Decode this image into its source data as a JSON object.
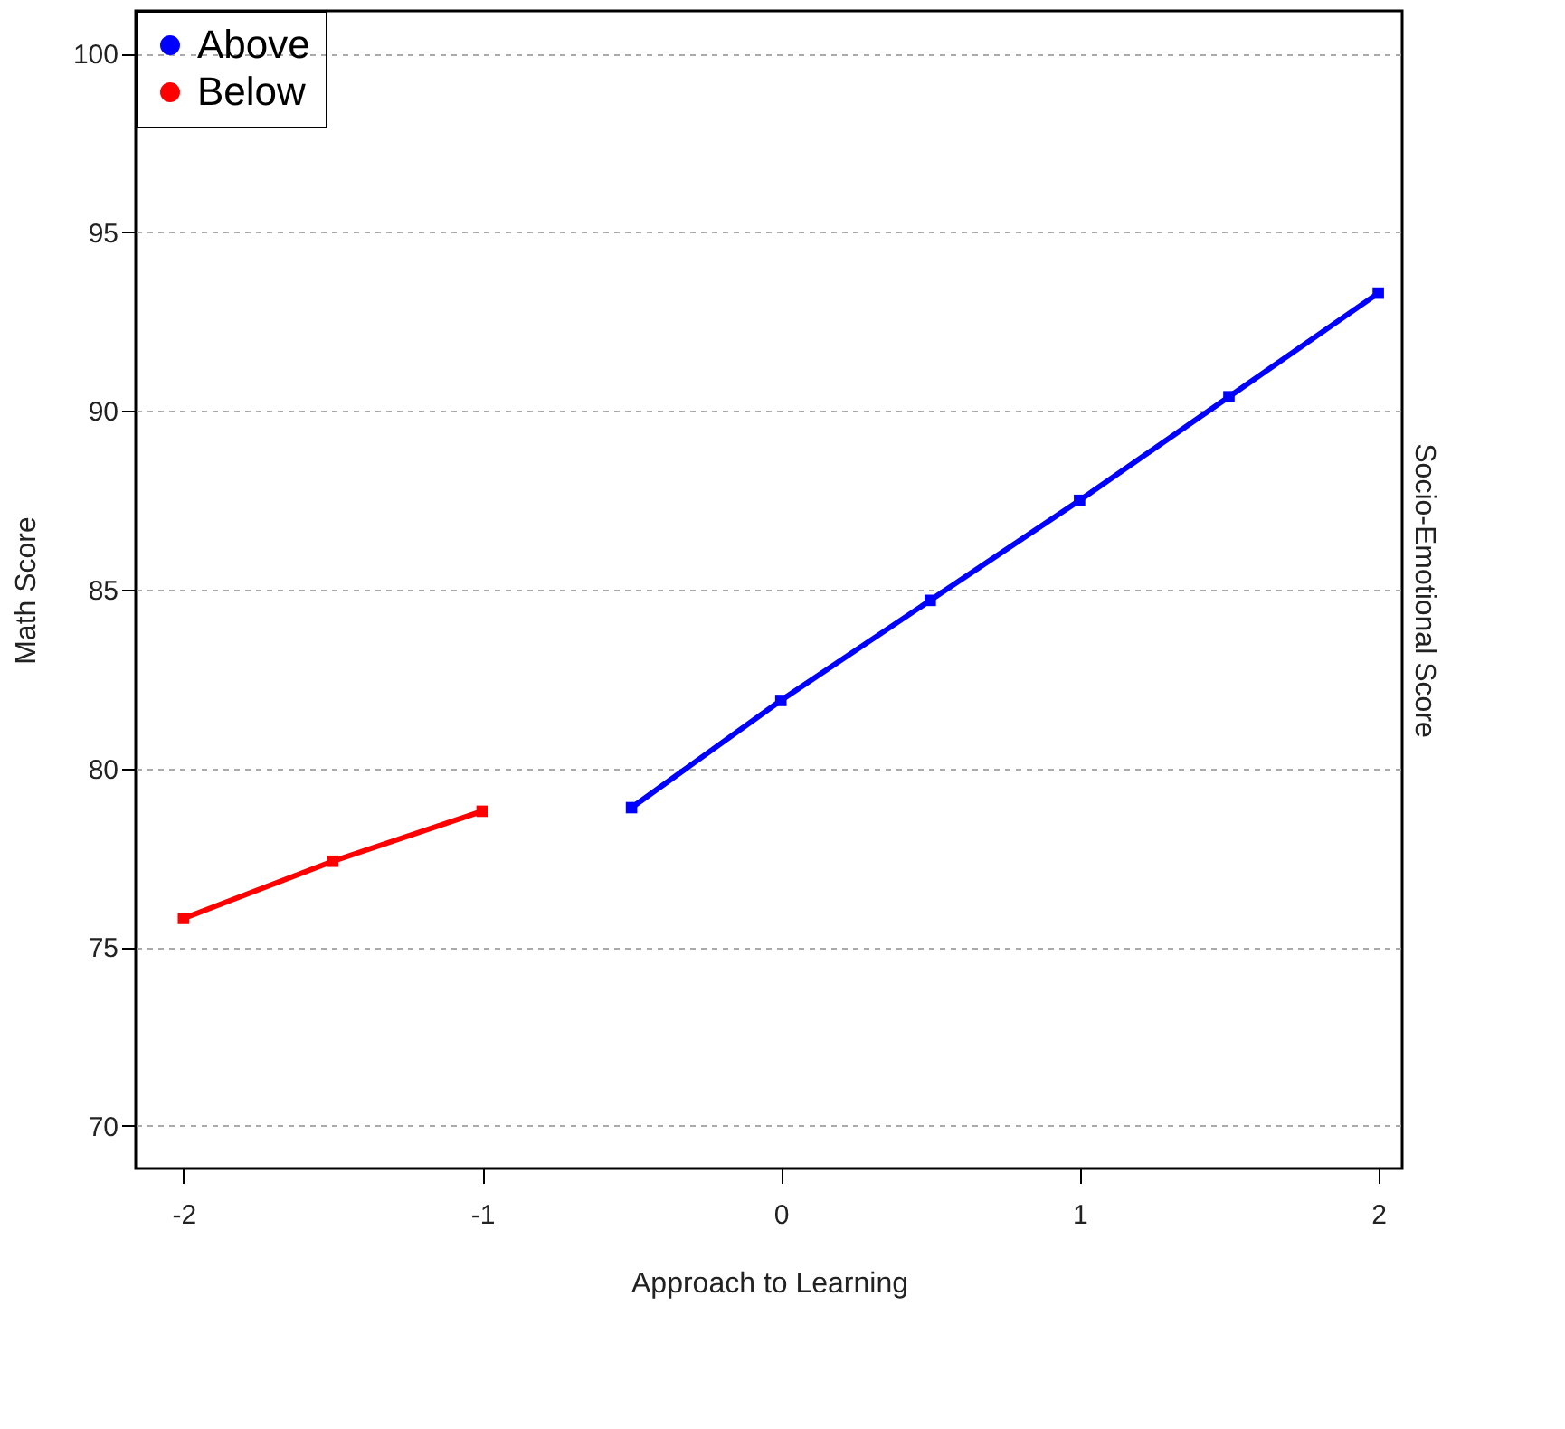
{
  "chart_data": {
    "type": "line",
    "xlabel": "Approach to Learning",
    "ylabel": "Math Score",
    "y2label": "Socio-Emotional Score",
    "series": [
      {
        "name": "Above",
        "color": "#0000ff",
        "x": [
          -0.5,
          0,
          0.5,
          1,
          1.5,
          2
        ],
        "values": [
          78.9,
          81.9,
          84.7,
          87.5,
          90.4,
          93.3
        ]
      },
      {
        "name": "Below",
        "color": "#ff0000",
        "x": [
          -2,
          -1.5,
          -1
        ],
        "values": [
          75.8,
          77.4,
          78.8
        ]
      }
    ],
    "xlim": [
      -2.16,
      2.08
    ],
    "xticks": [
      -2,
      -1,
      0,
      1,
      2
    ],
    "ylim": [
      68.8,
      101.2
    ],
    "yticks": [
      70,
      75,
      80,
      85,
      90,
      95,
      100
    ],
    "grid": "y",
    "legend": "top left",
    "marker": "square",
    "line_style": "solid"
  }
}
